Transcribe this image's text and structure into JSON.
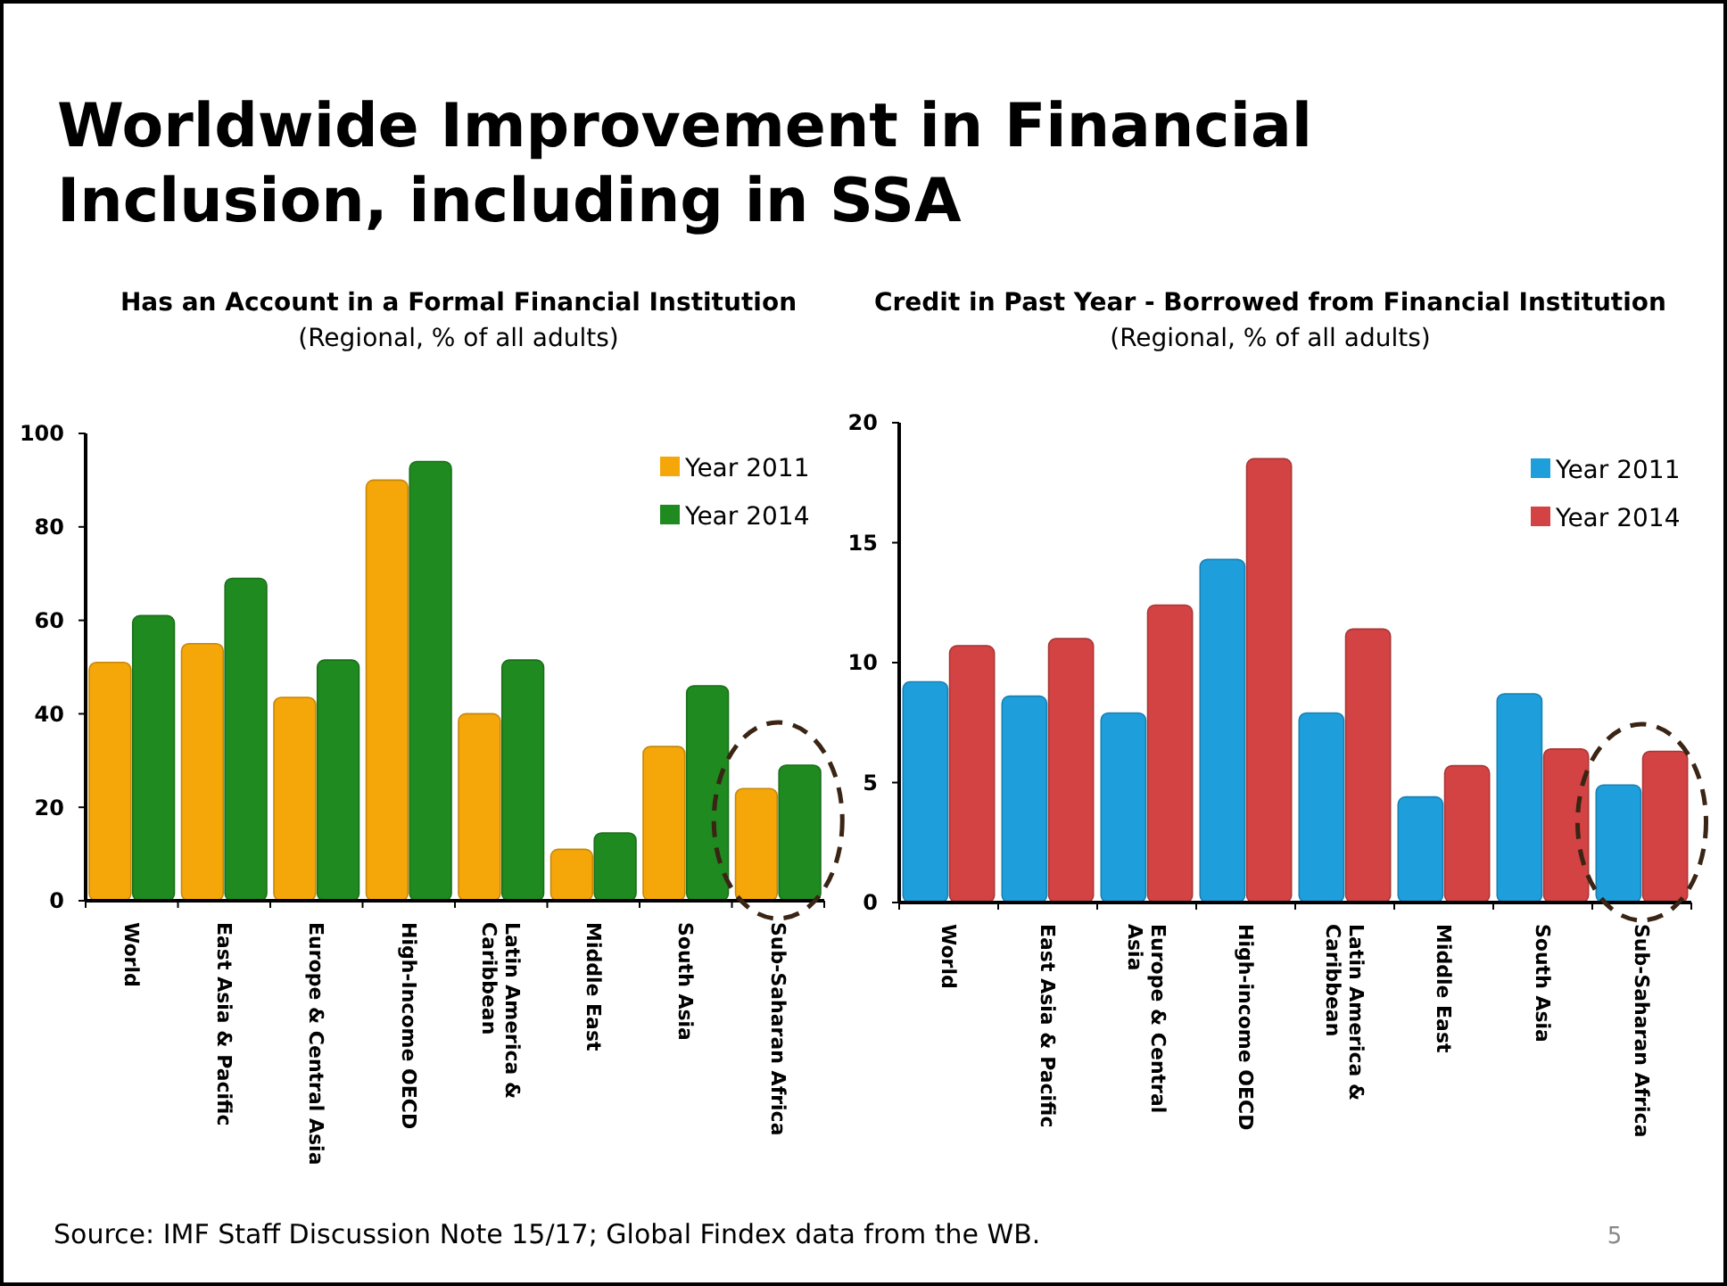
{
  "chart_data": [
    {
      "type": "bar",
      "title": "Has an Account in a Formal Financial Institution",
      "subtitle": "(Regional, % of all adults)",
      "categories": [
        "World",
        "East Asia & Pacific",
        "Europe & Central Asia",
        "High-Income OECD",
        "Latin America & Caribbean",
        "Middle East",
        "South Asia",
        "Sub-Saharan Africa"
      ],
      "series": [
        {
          "name": "Year 2011",
          "color": "#f5a70a",
          "values": [
            51,
            55,
            43.5,
            90,
            40,
            11,
            33,
            24
          ]
        },
        {
          "name": "Year 2014",
          "color": "#1f8a1f",
          "values": [
            61,
            69,
            51.5,
            94,
            51.5,
            14.5,
            46,
            29
          ]
        }
      ],
      "ylim": [
        0,
        100
      ],
      "yticks": [
        0,
        20,
        40,
        60,
        80,
        100
      ],
      "grid": false,
      "legend": "top right",
      "annotations": [
        "Worldwide Improvement in Financial Inclusion, including in SSA",
        "Source: IMF Staff Discussion Note 15/17; Global Findex data from the WB."
      ]
    },
    {
      "type": "bar",
      "title": "Credit in Past Year  - Borrowed from Financial Institution",
      "subtitle": "(Regional, % of all adults)",
      "categories": [
        "World",
        "East Asia & Pacific",
        "Europe & Central Asia",
        "High-income OECD",
        "Latin America & Caribbean",
        "Middle East",
        "South Asia",
        "Sub-Saharan Africa"
      ],
      "series": [
        {
          "name": "Year 2011",
          "color": "#1e9fdc",
          "values": [
            9.2,
            8.6,
            7.9,
            14.3,
            7.9,
            4.4,
            8.7,
            4.9
          ]
        },
        {
          "name": "Year 2014",
          "color": "#d34343",
          "values": [
            10.7,
            11,
            12.4,
            18.5,
            11.4,
            5.7,
            6.4,
            6.3
          ]
        }
      ],
      "ylim": [
        0,
        20
      ],
      "yticks": [
        0,
        5,
        10,
        15,
        20
      ],
      "grid": false,
      "legend": "top right",
      "annotations": [
        "5"
      ]
    }
  ]
}
